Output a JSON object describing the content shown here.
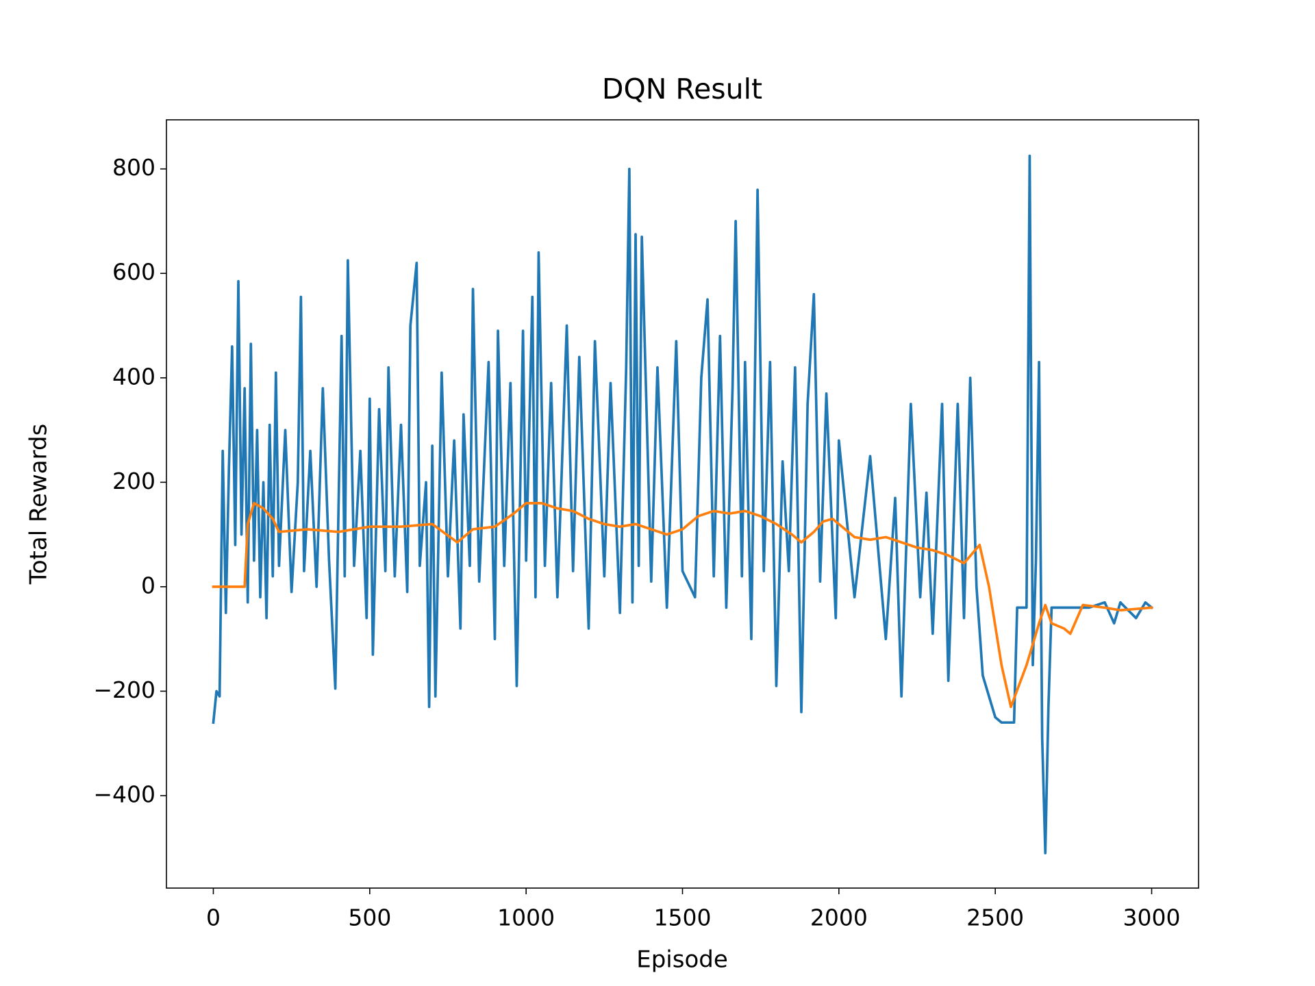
{
  "chart_data": {
    "type": "line",
    "title": "DQN Result",
    "x_label": "Episode",
    "y_label": "Total Rewards",
    "xlim": [
      -150,
      3150
    ],
    "ylim": [
      -577,
      894
    ],
    "xticks": [
      0,
      500,
      1000,
      1500,
      2000,
      2500,
      3000
    ],
    "yticks": [
      {
        "value": -400,
        "label": "−400"
      },
      {
        "value": -200,
        "label": "−200"
      },
      0,
      200,
      400,
      600,
      800
    ],
    "grid": false,
    "series": [
      {
        "color": "#1f77b4",
        "x": [
          0,
          10,
          20,
          30,
          40,
          50,
          60,
          70,
          80,
          90,
          100,
          110,
          120,
          130,
          140,
          150,
          160,
          170,
          180,
          190,
          200,
          210,
          230,
          250,
          270,
          280,
          290,
          310,
          330,
          350,
          370,
          390,
          410,
          420,
          430,
          450,
          470,
          490,
          500,
          510,
          530,
          550,
          560,
          580,
          600,
          620,
          630,
          650,
          660,
          680,
          690,
          700,
          710,
          730,
          750,
          770,
          790,
          800,
          820,
          830,
          850,
          880,
          900,
          910,
          930,
          950,
          970,
          990,
          1000,
          1020,
          1030,
          1040,
          1060,
          1080,
          1100,
          1130,
          1150,
          1170,
          1200,
          1220,
          1250,
          1270,
          1300,
          1320,
          1330,
          1340,
          1350,
          1360,
          1370,
          1400,
          1420,
          1450,
          1480,
          1500,
          1540,
          1560,
          1580,
          1600,
          1620,
          1640,
          1660,
          1670,
          1690,
          1700,
          1720,
          1740,
          1760,
          1780,
          1800,
          1820,
          1840,
          1860,
          1880,
          1900,
          1920,
          1940,
          1960,
          1990,
          2000,
          2050,
          2100,
          2150,
          2180,
          2200,
          2230,
          2260,
          2280,
          2300,
          2330,
          2350,
          2380,
          2400,
          2420,
          2440,
          2460,
          2480,
          2500,
          2520,
          2560,
          2570,
          2600,
          2610,
          2620,
          2630,
          2640,
          2650,
          2660,
          2670,
          2680,
          2700,
          2750,
          2800,
          2850,
          2880,
          2900,
          2950,
          2980,
          3000
        ],
        "values": [
          -260,
          -200,
          -210,
          260,
          -50,
          230,
          460,
          80,
          585,
          100,
          380,
          -30,
          465,
          50,
          300,
          -20,
          200,
          -60,
          310,
          20,
          410,
          40,
          300,
          -10,
          200,
          555,
          30,
          260,
          0,
          380,
          50,
          -195,
          480,
          20,
          625,
          40,
          260,
          -60,
          360,
          -130,
          340,
          30,
          420,
          20,
          310,
          -10,
          500,
          620,
          40,
          200,
          -230,
          270,
          -210,
          410,
          20,
          280,
          -80,
          330,
          40,
          570,
          10,
          430,
          -100,
          490,
          40,
          390,
          -190,
          490,
          50,
          555,
          -20,
          640,
          40,
          390,
          -20,
          500,
          30,
          440,
          -80,
          470,
          20,
          390,
          -50,
          420,
          800,
          -30,
          675,
          40,
          670,
          10,
          420,
          -40,
          470,
          30,
          -20,
          400,
          550,
          20,
          480,
          -40,
          380,
          700,
          20,
          430,
          -100,
          760,
          30,
          430,
          -190,
          240,
          30,
          420,
          -240,
          350,
          560,
          10,
          370,
          -60,
          280,
          -20,
          250,
          -100,
          170,
          -210,
          350,
          -20,
          180,
          -90,
          350,
          -180,
          350,
          -60,
          400,
          0,
          -170,
          -210,
          -250,
          -260,
          -260,
          -40,
          -40,
          825,
          -150,
          50,
          430,
          -290,
          -510,
          -230,
          -40,
          -40,
          -40,
          -40,
          -30,
          -70,
          -30,
          -60,
          -30,
          -40
        ]
      },
      {
        "color": "#ff7f0e",
        "x": [
          0,
          100,
          110,
          130,
          160,
          190,
          210,
          300,
          400,
          450,
          500,
          600,
          700,
          780,
          830,
          900,
          960,
          1000,
          1050,
          1100,
          1150,
          1200,
          1250,
          1300,
          1350,
          1400,
          1450,
          1500,
          1550,
          1600,
          1650,
          1700,
          1750,
          1800,
          1850,
          1880,
          1920,
          1950,
          1980,
          2000,
          2050,
          2100,
          2150,
          2200,
          2250,
          2300,
          2350,
          2400,
          2450,
          2480,
          2520,
          2550,
          2600,
          2640,
          2660,
          2680,
          2720,
          2740,
          2780,
          2850,
          2900,
          3000
        ],
        "values": [
          0,
          0,
          120,
          160,
          150,
          130,
          105,
          110,
          105,
          110,
          115,
          115,
          120,
          85,
          110,
          115,
          140,
          160,
          160,
          150,
          145,
          130,
          120,
          115,
          120,
          110,
          100,
          110,
          135,
          145,
          140,
          145,
          135,
          120,
          100,
          85,
          105,
          125,
          130,
          120,
          95,
          90,
          95,
          85,
          75,
          70,
          60,
          45,
          80,
          0,
          -150,
          -230,
          -150,
          -70,
          -35,
          -70,
          -80,
          -90,
          -35,
          -40,
          -45,
          -40
        ]
      }
    ]
  }
}
